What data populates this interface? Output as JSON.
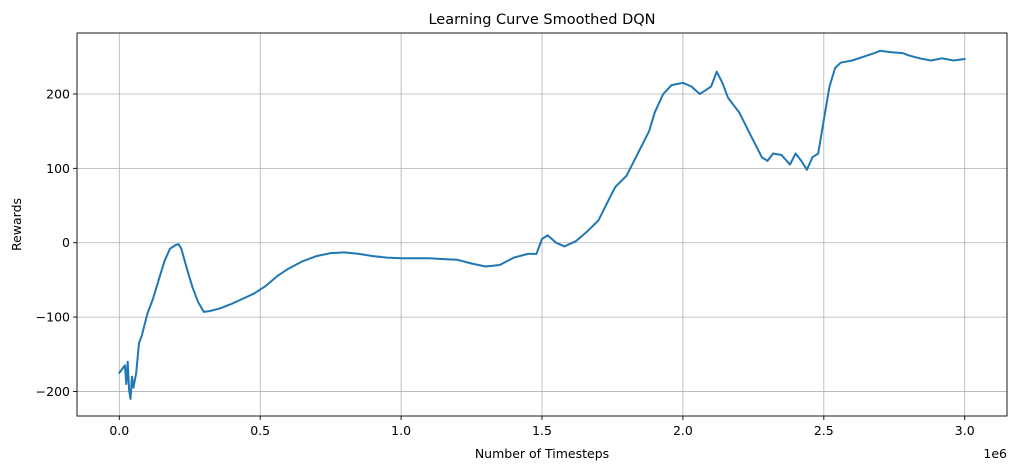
{
  "chart_data": {
    "type": "line",
    "title": "Learning Curve Smoothed DQN",
    "xlabel": "Number of Timesteps",
    "ylabel": "Rewards",
    "x_offset_label": "1e6",
    "xlim": [
      -0.15,
      3.15
    ],
    "ylim": [
      -233,
      282
    ],
    "x_scale_multiplier": 1000000,
    "xticks": [
      0.0,
      0.5,
      1.0,
      1.5,
      2.0,
      2.5,
      3.0
    ],
    "xtick_labels": [
      "0.0",
      "0.5",
      "1.0",
      "1.5",
      "2.0",
      "2.5",
      "3.0"
    ],
    "yticks": [
      -200,
      -100,
      0,
      100,
      200
    ],
    "ytick_labels": [
      "−200",
      "−100",
      "0",
      "100",
      "200"
    ],
    "grid": true,
    "series": [
      {
        "color": "#1f77b4",
        "x": [
          0.0,
          0.01,
          0.02,
          0.025,
          0.03,
          0.035,
          0.04,
          0.045,
          0.05,
          0.055,
          0.06,
          0.07,
          0.08,
          0.09,
          0.1,
          0.12,
          0.14,
          0.16,
          0.18,
          0.2,
          0.21,
          0.22,
          0.24,
          0.26,
          0.28,
          0.3,
          0.32,
          0.34,
          0.36,
          0.4,
          0.44,
          0.48,
          0.52,
          0.56,
          0.6,
          0.65,
          0.7,
          0.75,
          0.8,
          0.85,
          0.9,
          0.95,
          1.0,
          1.05,
          1.1,
          1.15,
          1.2,
          1.25,
          1.3,
          1.35,
          1.4,
          1.45,
          1.48,
          1.5,
          1.52,
          1.55,
          1.58,
          1.62,
          1.66,
          1.7,
          1.74,
          1.76,
          1.8,
          1.84,
          1.86,
          1.88,
          1.9,
          1.93,
          1.96,
          2.0,
          2.03,
          2.06,
          2.08,
          2.1,
          2.12,
          2.14,
          2.16,
          2.2,
          2.24,
          2.28,
          2.3,
          2.32,
          2.35,
          2.38,
          2.4,
          2.42,
          2.44,
          2.46,
          2.48,
          2.5,
          2.52,
          2.54,
          2.56,
          2.6,
          2.64,
          2.68,
          2.7,
          2.74,
          2.78,
          2.8,
          2.84,
          2.88,
          2.92,
          2.96,
          3.0
        ],
        "y": [
          -175,
          -170,
          -165,
          -190,
          -160,
          -198,
          -210,
          -180,
          -195,
          -185,
          -175,
          -135,
          -125,
          -110,
          -95,
          -75,
          -50,
          -25,
          -8,
          -3,
          -2,
          -8,
          -35,
          -60,
          -80,
          -93,
          -92,
          -90,
          -88,
          -82,
          -75,
          -68,
          -58,
          -45,
          -35,
          -25,
          -18,
          -14,
          -13,
          -15,
          -18,
          -20,
          -21,
          -21,
          -21,
          -22,
          -23,
          -28,
          -32,
          -30,
          -20,
          -15,
          -15,
          5,
          10,
          0,
          -5,
          2,
          15,
          30,
          60,
          75,
          90,
          120,
          135,
          150,
          175,
          200,
          212,
          215,
          210,
          200,
          205,
          210,
          230,
          215,
          195,
          175,
          145,
          115,
          110,
          120,
          118,
          105,
          120,
          110,
          98,
          115,
          120,
          165,
          210,
          235,
          242,
          245,
          250,
          255,
          258,
          256,
          255,
          252,
          248,
          245,
          248,
          245,
          247
        ]
      }
    ]
  }
}
